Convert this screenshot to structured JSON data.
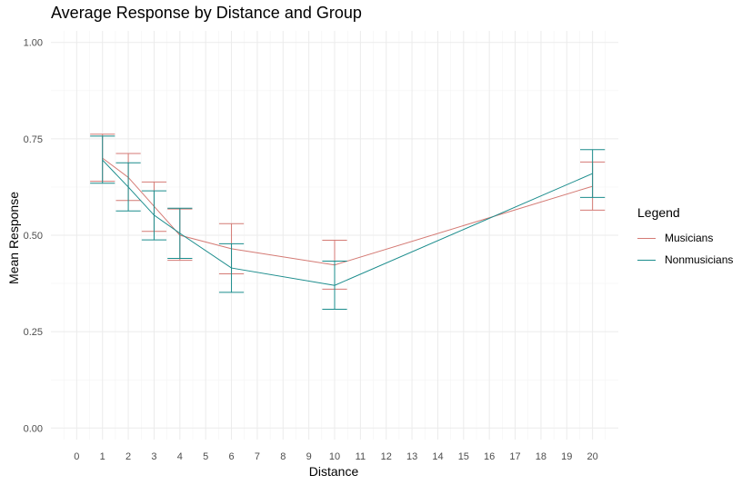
{
  "chart_data": {
    "type": "line",
    "title": "Average Response by Distance and Group",
    "xlabel": "Distance",
    "ylabel": "Mean Response",
    "xlim": [
      -1,
      21
    ],
    "ylim": [
      -0.03,
      1.03
    ],
    "x_ticks": [
      0,
      1,
      2,
      3,
      4,
      5,
      6,
      7,
      8,
      9,
      10,
      11,
      12,
      13,
      14,
      15,
      16,
      17,
      18,
      19,
      20
    ],
    "y_ticks": [
      0.0,
      0.25,
      0.5,
      0.75,
      1.0
    ],
    "y_tick_labels": [
      "0.00",
      "0.25",
      "0.50",
      "0.75",
      "1.00"
    ],
    "grid": true,
    "legend": {
      "title": "Legend",
      "position": "right"
    },
    "series": [
      {
        "name": "Musicians",
        "color": "#D47A74",
        "x": [
          1,
          2,
          3,
          4,
          6,
          10,
          20
        ],
        "y": [
          0.7,
          0.65,
          0.575,
          0.5,
          0.465,
          0.423,
          0.627
        ],
        "ymin": [
          0.64,
          0.59,
          0.51,
          0.435,
          0.4,
          0.36,
          0.565
        ],
        "ymax": [
          0.762,
          0.712,
          0.638,
          0.568,
          0.53,
          0.487,
          0.69
        ]
      },
      {
        "name": "Nonmusicians",
        "color": "#1A8C8C",
        "x": [
          1,
          2,
          3,
          4,
          6,
          10,
          20
        ],
        "y": [
          0.695,
          0.625,
          0.552,
          0.505,
          0.415,
          0.37,
          0.66
        ],
        "ymin": [
          0.635,
          0.563,
          0.488,
          0.44,
          0.352,
          0.308,
          0.598
        ],
        "ymax": [
          0.757,
          0.688,
          0.615,
          0.57,
          0.478,
          0.433,
          0.722
        ]
      }
    ]
  }
}
